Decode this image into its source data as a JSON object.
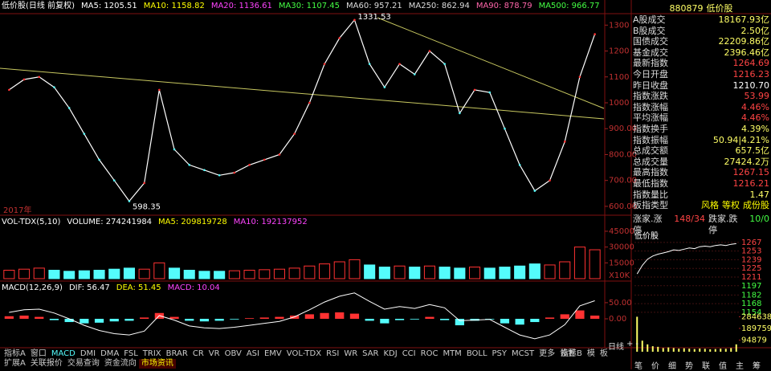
{
  "chart_data": [
    {
      "type": "line",
      "color": "#ffffff",
      "legend": [
        {
          "text": "低价股(日线 前复权)",
          "color": "#ffffff"
        },
        {
          "text": "MA5: 1205.51",
          "color": "#ffffff"
        },
        {
          "text": "MA10: 1158.82",
          "color": "#ffff00"
        },
        {
          "text": "MA20: 1136.61",
          "color": "#ff44ff"
        },
        {
          "text": "MA30: 1107.45",
          "color": "#44ff44"
        },
        {
          "text": "MA60: 957.21",
          "color": "#dddddd"
        },
        {
          "text": "MA250: 862.94",
          "color": "#dddddd"
        },
        {
          "text": "MA90: 878.79",
          "color": "#ff66aa"
        },
        {
          "text": "MA500: 966.77",
          "color": "#44ff44"
        }
      ],
      "values": [
        1050,
        1090,
        1100,
        1060,
        980,
        880,
        780,
        700,
        620,
        690,
        1050,
        820,
        760,
        740,
        720,
        730,
        760,
        780,
        800,
        880,
        1000,
        1150,
        1250,
        1320,
        1150,
        1060,
        1150,
        1110,
        1200,
        1150,
        960,
        1050,
        1040,
        900,
        760,
        660,
        700,
        850,
        1100,
        1265
      ],
      "ylim": [
        575,
        1335
      ],
      "yticks": [
        1300,
        1200,
        1100,
        1000,
        {
          "value": 900,
          "label": "900.00"
        },
        {
          "value": 800,
          "label": "800.00"
        },
        {
          "value": 700,
          "label": "700.00"
        },
        {
          "value": 600,
          "label": "600.00"
        }
      ],
      "annotations": [
        {
          "value": 1331.53,
          "label": "1331.53"
        },
        {
          "value": 598.35,
          "label": "598.35"
        }
      ],
      "x_label": "2017年"
    },
    {
      "type": "bar",
      "up_color": "#ff3232",
      "down_color": "#54fcfc",
      "legend": [
        {
          "text": "VOL-TDX(5,10)",
          "color": "#ffffff"
        },
        {
          "text": "VOLUME: 274241984",
          "color": "#ffffff"
        },
        {
          "text": "MA5: 209819728",
          "color": "#ffff00"
        },
        {
          "text": "MA10: 192137952",
          "color": "#ff44ff"
        }
      ],
      "values": [
        8000,
        9000,
        10000,
        8000,
        7000,
        7500,
        8000,
        9000,
        10000,
        9000,
        15000,
        10000,
        8000,
        7000,
        7000,
        7500,
        8000,
        8500,
        9000,
        10000,
        12000,
        14000,
        16000,
        18000,
        13000,
        11000,
        12000,
        11000,
        12000,
        11000,
        10000,
        11000,
        10000,
        11000,
        12000,
        14000,
        13000,
        16000,
        30000,
        27424
      ],
      "ylim": [
        0,
        46500
      ],
      "yticks": [
        45000,
        30000,
        15000
      ],
      "unit_label": "X10K"
    },
    {
      "type": "macd",
      "up_color": "#ff3232",
      "down_color": "#54fcfc",
      "line_color": "#ffffff",
      "legend": [
        {
          "text": "MACD(12,26,9)",
          "color": "#ffffff"
        },
        {
          "text": "DIF: 56.47",
          "color": "#ffffff"
        },
        {
          "text": "DEA: 51.45",
          "color": "#ffff00"
        },
        {
          "text": "MACD: 10.04",
          "color": "#ff44ff"
        }
      ],
      "values": [
        8,
        10,
        6,
        -4,
        -10,
        -14,
        -12,
        -8,
        -6,
        4,
        18,
        6,
        -6,
        -8,
        -6,
        -2,
        2,
        4,
        6,
        10,
        14,
        18,
        20,
        16,
        -6,
        -14,
        -4,
        -2,
        6,
        -4,
        -20,
        -6,
        -2,
        -14,
        -18,
        -10,
        4,
        14,
        26,
        10
      ],
      "dif_values": [
        20,
        28,
        30,
        18,
        0,
        -20,
        -36,
        -46,
        -50,
        -38,
        10,
        -4,
        -22,
        -28,
        -30,
        -26,
        -20,
        -14,
        -8,
        6,
        28,
        52,
        70,
        80,
        54,
        30,
        38,
        32,
        44,
        34,
        -6,
        -4,
        -2,
        -26,
        -50,
        -62,
        -50,
        -18,
        40,
        56
      ],
      "ylim": [
        -87,
        102
      ],
      "yticks": [
        {
          "value": 50,
          "label": "50.00"
        },
        {
          "value": 0,
          "label": "0.00"
        }
      ]
    },
    {
      "type": "intraday",
      "color": "#ffffff",
      "title": "低价股",
      "ref": 1210.7,
      "values": [
        1216,
        1230,
        1240,
        1245,
        1248,
        1250,
        1252,
        1255,
        1254,
        1256,
        1258,
        1257,
        1260,
        1261,
        1260,
        1262,
        1263,
        1262,
        1264,
        1265
      ],
      "volume_values": [
        284638,
        90000,
        60000,
        45000,
        40000,
        30000,
        35000,
        30000,
        25000,
        28000,
        25000,
        22000,
        26000,
        24000,
        20000,
        22000,
        25000,
        24000,
        30000,
        60000
      ],
      "ylim": [
        1150,
        1272
      ],
      "yticks": [
        1267,
        1253,
        1239,
        1225,
        1211,
        1197,
        1182,
        1168,
        1154
      ],
      "vlim": [
        0,
        294000
      ],
      "vticks": [
        284638,
        189759,
        94879
      ]
    }
  ],
  "panel": {
    "code": "880879",
    "name": "低价股",
    "rows": [
      [
        "A股成交",
        "18167.93亿",
        "#ffff66"
      ],
      [
        "B股成交",
        "2.50亿",
        "#ffff66"
      ],
      [
        "国债成交",
        "22209.86亿",
        "#ffff66"
      ],
      [
        "基金成交",
        "2396.46亿",
        "#ffff66"
      ],
      [
        "最新指数",
        "1264.69",
        "#ff4444"
      ],
      [
        "今日开盘",
        "1216.23",
        "#ff4444"
      ],
      [
        "昨日收盘",
        "1210.70",
        "#ffffff"
      ],
      [
        "指数涨跌",
        "53.99",
        "#ff4444"
      ],
      [
        "指数涨幅",
        "4.46%",
        "#ff4444"
      ],
      [
        "平均涨幅",
        "4.46%",
        "#ff4444"
      ],
      [
        "指数换手",
        "4.39%",
        "#ffff66"
      ],
      [
        "指数振幅",
        "50.94|4.21%",
        "#ffff66"
      ],
      [
        "总成交额",
        "657.5亿",
        "#ffff66"
      ],
      [
        "总成交量",
        "27424.2万",
        "#ffff66"
      ],
      [
        "最高指数",
        "1267.15",
        "#ff4444"
      ],
      [
        "最低指数",
        "1216.21",
        "#ff4444"
      ],
      [
        "指数量比",
        "1.47",
        "#ffff66"
      ]
    ],
    "type_label": "板指类型",
    "type_links": [
      "风格",
      "等权",
      "成份股"
    ],
    "up_label": "涨家.涨停",
    "up_value": "148/34",
    "down_label": "跌家.跌停",
    "down_value": "10/0",
    "side_tabs": [
      "日线",
      "+",
      "-"
    ],
    "bottom_tabs": [
      "笔",
      "价",
      "细",
      "势",
      "联",
      "值",
      "主",
      "筹"
    ]
  },
  "tabs": {
    "row1": [
      "指标A",
      "窗口",
      "MACD",
      "DMI",
      "DMA",
      "FSL",
      "TRIX",
      "BRAR",
      "CR",
      "VR",
      "OBV",
      "ASI",
      "EMV",
      "VOL-TDX",
      "RSI",
      "WR",
      "SAR",
      "KDJ",
      "CCI",
      "ROC",
      "MTM",
      "BOLL",
      "PSY",
      "MCST",
      "更多",
      "设置"
    ],
    "row1_right": [
      "指标B",
      "模",
      "板"
    ],
    "row2": [
      "扩展A",
      "关联报价",
      "交易查询",
      "资金流向",
      "市场资讯"
    ]
  }
}
